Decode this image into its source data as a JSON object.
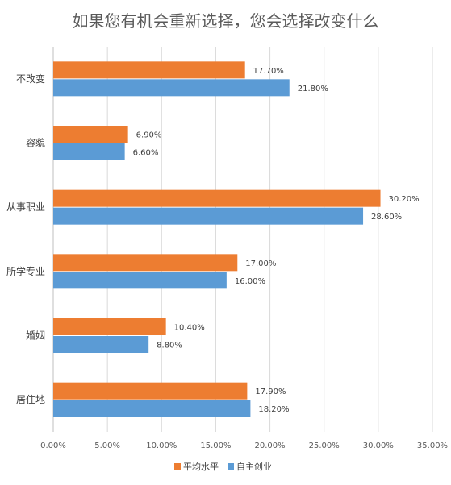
{
  "chart_data": {
    "type": "bar",
    "orientation": "horizontal",
    "title": "如果您有机会重新选择，您会选择改变什么",
    "categories": [
      "不改变",
      "容貌",
      "从事职业",
      "所学专业",
      "婚姻",
      "居住地"
    ],
    "series": [
      {
        "name": "平均水平",
        "color": "#ed7d31",
        "values": [
          17.7,
          6.9,
          30.2,
          17.0,
          10.4,
          17.9
        ],
        "labels": [
          "17.70%",
          "6.90%",
          "30.20%",
          "17.00%",
          "10.40%",
          "17.90%"
        ]
      },
      {
        "name": "自主创业",
        "color": "#5b9bd5",
        "values": [
          21.8,
          6.6,
          28.6,
          16.0,
          8.8,
          18.2
        ],
        "labels": [
          "21.80%",
          "6.60%",
          "28.60%",
          "16.00%",
          "8.80%",
          "18.20%"
        ]
      }
    ],
    "xlim": [
      0,
      35
    ],
    "ticks": [
      "0.00%",
      "5.00%",
      "10.00%",
      "15.00%",
      "20.00%",
      "25.00%",
      "30.00%",
      "35.00%"
    ],
    "grid": true,
    "legend_position": "bottom"
  }
}
